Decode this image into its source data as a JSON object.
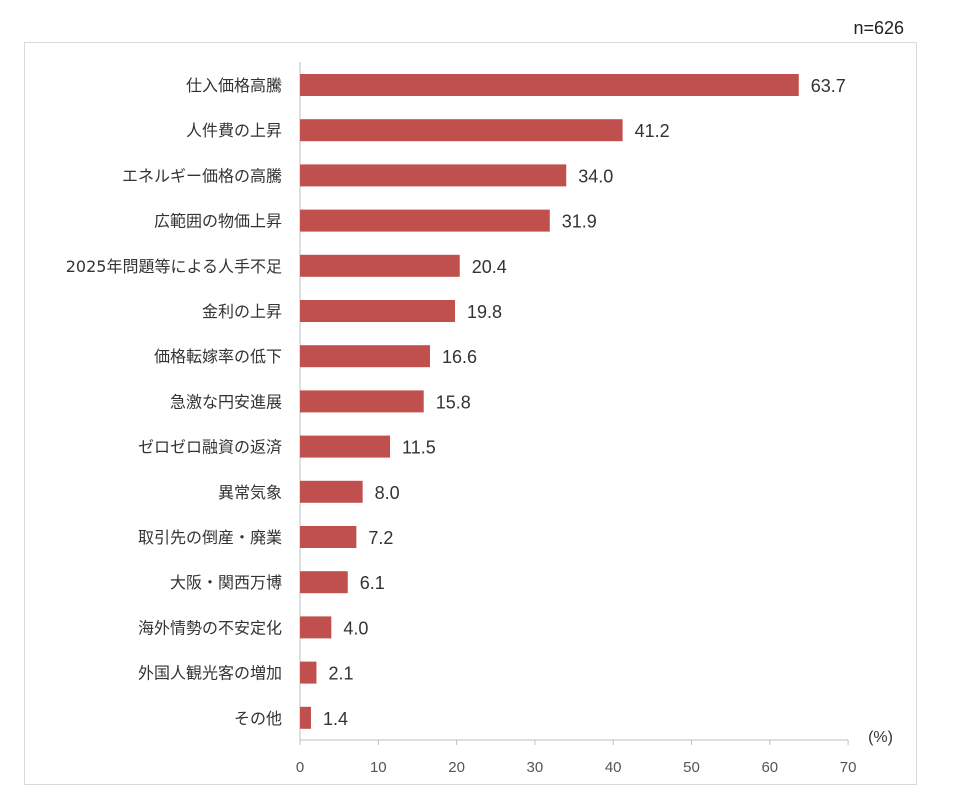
{
  "sample_label": "n=626",
  "chart_data": {
    "type": "bar",
    "orientation": "horizontal",
    "categories": [
      "仕入価格高騰",
      "人件費の上昇",
      "エネルギー価格の高騰",
      "広範囲の物価上昇",
      "2025年問題等による人手不足",
      "金利の上昇",
      "価格転嫁率の低下",
      "急激な円安進展",
      "ゼロゼロ融資の返済",
      "異常気象",
      "取引先の倒産・廃業",
      "大阪・関西万博",
      "海外情勢の不安定化",
      "外国人観光客の増加",
      "その他"
    ],
    "values": [
      63.7,
      41.2,
      34.0,
      31.9,
      20.4,
      19.8,
      16.6,
      15.8,
      11.5,
      8.0,
      7.2,
      6.1,
      4.0,
      2.1,
      1.4
    ],
    "value_labels": [
      "63.7",
      "41.2",
      "34.0",
      "31.9",
      "20.4",
      "19.8",
      "16.6",
      "15.8",
      "11.5",
      "8.0",
      "7.2",
      "6.1",
      "4.0",
      "2.1",
      "1.4"
    ],
    "x_ticks": [
      "0",
      "10",
      "20",
      "30",
      "40",
      "50",
      "60",
      "70"
    ],
    "xlim": [
      0,
      70
    ],
    "unit_label": "(%)",
    "bar_color": "#c0504d",
    "grid": false
  }
}
